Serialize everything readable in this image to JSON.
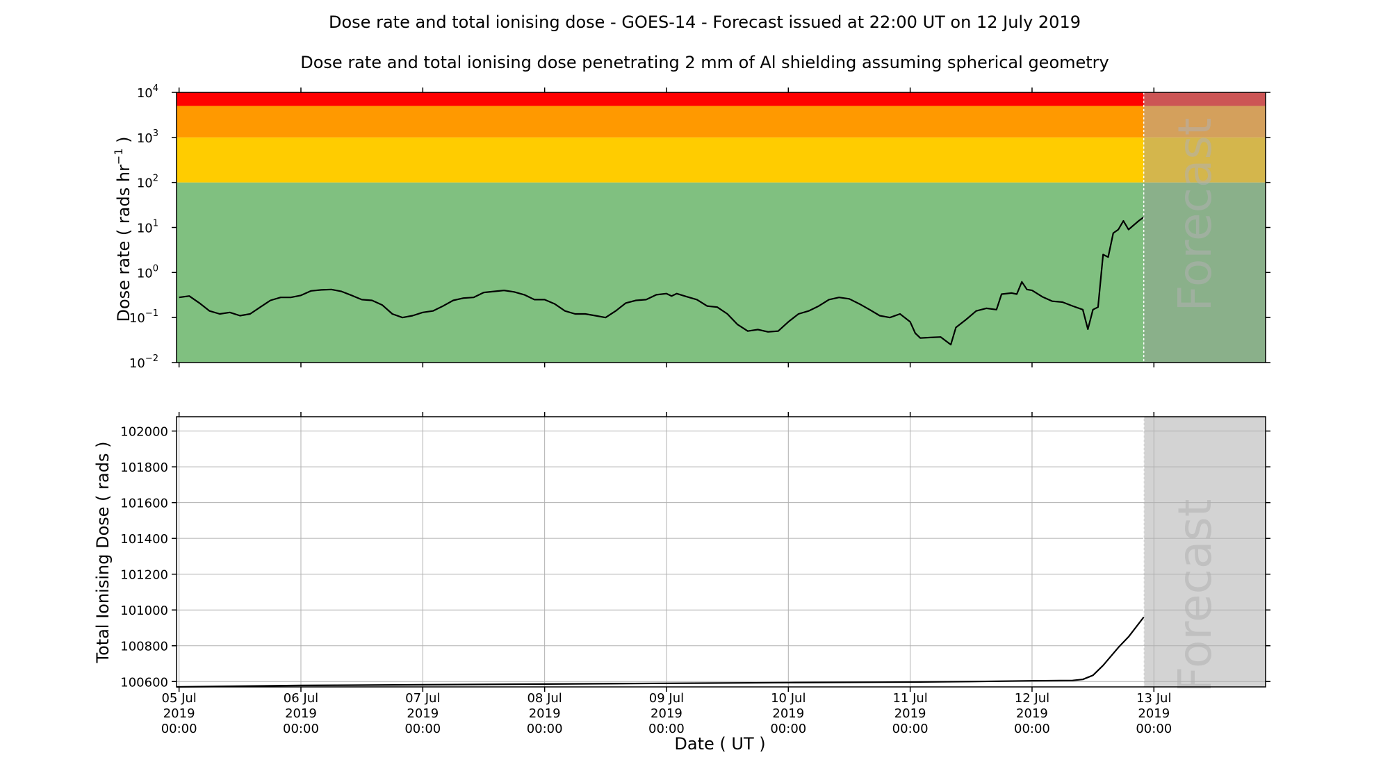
{
  "chart_data": {
    "type": "line",
    "title": "Dose rate and total ionising dose - GOES-14 - Forecast issued at 22:00 UT on 12 July 2019",
    "subtitle": "Dose rate and total ionising dose penetrating 2 mm of Al shielding assuming spherical geometry",
    "xlabel": "Date ( UT )",
    "x_ticks": [
      {
        "date": "05 Jul",
        "year": "2019",
        "time": "00:00"
      },
      {
        "date": "06 Jul",
        "year": "2019",
        "time": "00:00"
      },
      {
        "date": "07 Jul",
        "year": "2019",
        "time": "00:00"
      },
      {
        "date": "08 Jul",
        "year": "2019",
        "time": "00:00"
      },
      {
        "date": "09 Jul",
        "year": "2019",
        "time": "00:00"
      },
      {
        "date": "10 Jul",
        "year": "2019",
        "time": "00:00"
      },
      {
        "date": "11 Jul",
        "year": "2019",
        "time": "00:00"
      },
      {
        "date": "12 Jul",
        "year": "2019",
        "time": "00:00"
      },
      {
        "date": "13 Jul",
        "year": "2019",
        "time": "00:00"
      }
    ],
    "x_range": [
      "2019-07-04 23:30",
      "2019-07-13 22:00"
    ],
    "forecast_start": "2019-07-12 22:00",
    "forecast_label": "Forecast",
    "panels": [
      {
        "name": "dose_rate",
        "ylabel_pre": "Dose rate ( rads hr",
        "ylabel_sup": "−1",
        "ylabel_post": " )",
        "yscale": "log",
        "ylim": [
          0.01,
          10000
        ],
        "y_ticks": [
          {
            "base": "10",
            "exp": "−2"
          },
          {
            "base": "10",
            "exp": "−1"
          },
          {
            "base": "10",
            "exp": "0"
          },
          {
            "base": "10",
            "exp": "1"
          },
          {
            "base": "10",
            "exp": "2"
          },
          {
            "base": "10",
            "exp": "3"
          },
          {
            "base": "10",
            "exp": "4"
          }
        ],
        "grid": false,
        "bands": [
          {
            "from": 0.01,
            "to": 100,
            "color": "#80c080",
            "forecast_color": "#8ab08a"
          },
          {
            "from": 100,
            "to": 1000,
            "color": "#ffcc00",
            "forecast_color": "#d4b64c"
          },
          {
            "from": 1000,
            "to": 5000,
            "color": "#ff9900",
            "forecast_color": "#d4a05c"
          },
          {
            "from": 5000,
            "to": 10000,
            "color": "#ff0000",
            "forecast_color": "#cc5555"
          }
        ],
        "series": [
          {
            "values": [
              [
                "2019-07-05 00:00",
                0.28
              ],
              [
                "2019-07-05 02:00",
                0.3
              ],
              [
                "2019-07-05 04:00",
                0.21
              ],
              [
                "2019-07-05 06:00",
                0.14
              ],
              [
                "2019-07-05 08:00",
                0.12
              ],
              [
                "2019-07-05 10:00",
                0.13
              ],
              [
                "2019-07-05 12:00",
                0.11
              ],
              [
                "2019-07-05 14:00",
                0.12
              ],
              [
                "2019-07-05 16:00",
                0.17
              ],
              [
                "2019-07-05 18:00",
                0.24
              ],
              [
                "2019-07-05 20:00",
                0.28
              ],
              [
                "2019-07-05 22:00",
                0.28
              ],
              [
                "2019-07-06 00:00",
                0.31
              ],
              [
                "2019-07-06 02:00",
                0.39
              ],
              [
                "2019-07-06 04:00",
                0.41
              ],
              [
                "2019-07-06 06:00",
                0.42
              ],
              [
                "2019-07-06 08:00",
                0.38
              ],
              [
                "2019-07-06 10:00",
                0.31
              ],
              [
                "2019-07-06 12:00",
                0.25
              ],
              [
                "2019-07-06 14:00",
                0.24
              ],
              [
                "2019-07-06 16:00",
                0.19
              ],
              [
                "2019-07-06 18:00",
                0.12
              ],
              [
                "2019-07-06 20:00",
                0.1
              ],
              [
                "2019-07-06 22:00",
                0.11
              ],
              [
                "2019-07-07 00:00",
                0.13
              ],
              [
                "2019-07-07 02:00",
                0.14
              ],
              [
                "2019-07-07 04:00",
                0.18
              ],
              [
                "2019-07-07 06:00",
                0.24
              ],
              [
                "2019-07-07 08:00",
                0.27
              ],
              [
                "2019-07-07 10:00",
                0.28
              ],
              [
                "2019-07-07 12:00",
                0.36
              ],
              [
                "2019-07-07 14:00",
                0.38
              ],
              [
                "2019-07-07 16:00",
                0.4
              ],
              [
                "2019-07-07 18:00",
                0.37
              ],
              [
                "2019-07-07 20:00",
                0.32
              ],
              [
                "2019-07-07 22:00",
                0.25
              ],
              [
                "2019-07-08 00:00",
                0.25
              ],
              [
                "2019-07-08 02:00",
                0.2
              ],
              [
                "2019-07-08 04:00",
                0.14
              ],
              [
                "2019-07-08 06:00",
                0.12
              ],
              [
                "2019-07-08 08:00",
                0.12
              ],
              [
                "2019-07-08 10:00",
                0.11
              ],
              [
                "2019-07-08 12:00",
                0.1
              ],
              [
                "2019-07-08 14:00",
                0.14
              ],
              [
                "2019-07-08 16:00",
                0.21
              ],
              [
                "2019-07-08 18:00",
                0.24
              ],
              [
                "2019-07-08 20:00",
                0.25
              ],
              [
                "2019-07-08 22:00",
                0.32
              ],
              [
                "2019-07-09 00:00",
                0.34
              ],
              [
                "2019-07-09 01:00",
                0.3
              ],
              [
                "2019-07-09 02:00",
                0.34
              ],
              [
                "2019-07-09 04:00",
                0.29
              ],
              [
                "2019-07-09 06:00",
                0.25
              ],
              [
                "2019-07-09 08:00",
                0.18
              ],
              [
                "2019-07-09 10:00",
                0.17
              ],
              [
                "2019-07-09 12:00",
                0.12
              ],
              [
                "2019-07-09 14:00",
                0.07
              ],
              [
                "2019-07-09 16:00",
                0.05
              ],
              [
                "2019-07-09 18:00",
                0.054
              ],
              [
                "2019-07-09 20:00",
                0.048
              ],
              [
                "2019-07-09 22:00",
                0.05
              ],
              [
                "2019-07-10 00:00",
                0.08
              ],
              [
                "2019-07-10 02:00",
                0.12
              ],
              [
                "2019-07-10 04:00",
                0.14
              ],
              [
                "2019-07-10 06:00",
                0.18
              ],
              [
                "2019-07-10 08:00",
                0.25
              ],
              [
                "2019-07-10 10:00",
                0.28
              ],
              [
                "2019-07-10 12:00",
                0.26
              ],
              [
                "2019-07-10 14:00",
                0.2
              ],
              [
                "2019-07-10 16:00",
                0.15
              ],
              [
                "2019-07-10 18:00",
                0.11
              ],
              [
                "2019-07-10 20:00",
                0.1
              ],
              [
                "2019-07-10 22:00",
                0.12
              ],
              [
                "2019-07-11 00:00",
                0.08
              ],
              [
                "2019-07-11 01:00",
                0.045
              ],
              [
                "2019-07-11 02:00",
                0.035
              ],
              [
                "2019-07-11 04:00",
                0.036
              ],
              [
                "2019-07-11 06:00",
                0.037
              ],
              [
                "2019-07-11 08:00",
                0.025
              ],
              [
                "2019-07-11 09:00",
                0.06
              ],
              [
                "2019-07-11 11:00",
                0.09
              ],
              [
                "2019-07-11 13:00",
                0.14
              ],
              [
                "2019-07-11 15:00",
                0.16
              ],
              [
                "2019-07-11 17:00",
                0.15
              ],
              [
                "2019-07-11 18:00",
                0.33
              ],
              [
                "2019-07-11 20:00",
                0.35
              ],
              [
                "2019-07-11 21:00",
                0.33
              ],
              [
                "2019-07-11 22:00",
                0.62
              ],
              [
                "2019-07-11 23:00",
                0.42
              ],
              [
                "2019-07-12 00:00",
                0.4
              ],
              [
                "2019-07-12 02:00",
                0.29
              ],
              [
                "2019-07-12 04:00",
                0.23
              ],
              [
                "2019-07-12 06:00",
                0.22
              ],
              [
                "2019-07-12 08:00",
                0.18
              ],
              [
                "2019-07-12 10:00",
                0.15
              ],
              [
                "2019-07-12 11:00",
                0.055
              ],
              [
                "2019-07-12 12:00",
                0.15
              ],
              [
                "2019-07-12 13:00",
                0.17
              ],
              [
                "2019-07-12 14:00",
                2.5
              ],
              [
                "2019-07-12 15:00",
                2.2
              ],
              [
                "2019-07-12 16:00",
                7.5
              ],
              [
                "2019-07-12 17:00",
                9.0
              ],
              [
                "2019-07-12 18:00",
                14.0
              ],
              [
                "2019-07-12 19:00",
                9.0
              ],
              [
                "2019-07-12 21:00",
                14.0
              ],
              [
                "2019-07-12 22:00",
                17.0
              ]
            ]
          }
        ]
      },
      {
        "name": "total_dose",
        "ylabel": "Total Ionising Dose ( rads )",
        "yscale": "linear",
        "ylim": [
          100570,
          102080
        ],
        "y_ticks": [
          "100600",
          "100800",
          "101000",
          "101200",
          "101400",
          "101600",
          "101800",
          "102000"
        ],
        "grid": true,
        "series": [
          {
            "values": [
              [
                "2019-07-04 23:30",
                100570
              ],
              [
                "2019-07-06 00:00",
                100578
              ],
              [
                "2019-07-07 00:00",
                100582
              ],
              [
                "2019-07-08 00:00",
                100586
              ],
              [
                "2019-07-09 00:00",
                100590
              ],
              [
                "2019-07-10 00:00",
                100594
              ],
              [
                "2019-07-11 00:00",
                100597
              ],
              [
                "2019-07-11 12:00",
                100600
              ],
              [
                "2019-07-12 00:00",
                100604
              ],
              [
                "2019-07-12 08:00",
                100606
              ],
              [
                "2019-07-12 10:00",
                100612
              ],
              [
                "2019-07-12 12:00",
                100635
              ],
              [
                "2019-07-12 14:00",
                100690
              ],
              [
                "2019-07-12 17:00",
                100790
              ],
              [
                "2019-07-12 19:00",
                100850
              ],
              [
                "2019-07-12 22:00",
                100960
              ]
            ]
          }
        ]
      }
    ]
  }
}
